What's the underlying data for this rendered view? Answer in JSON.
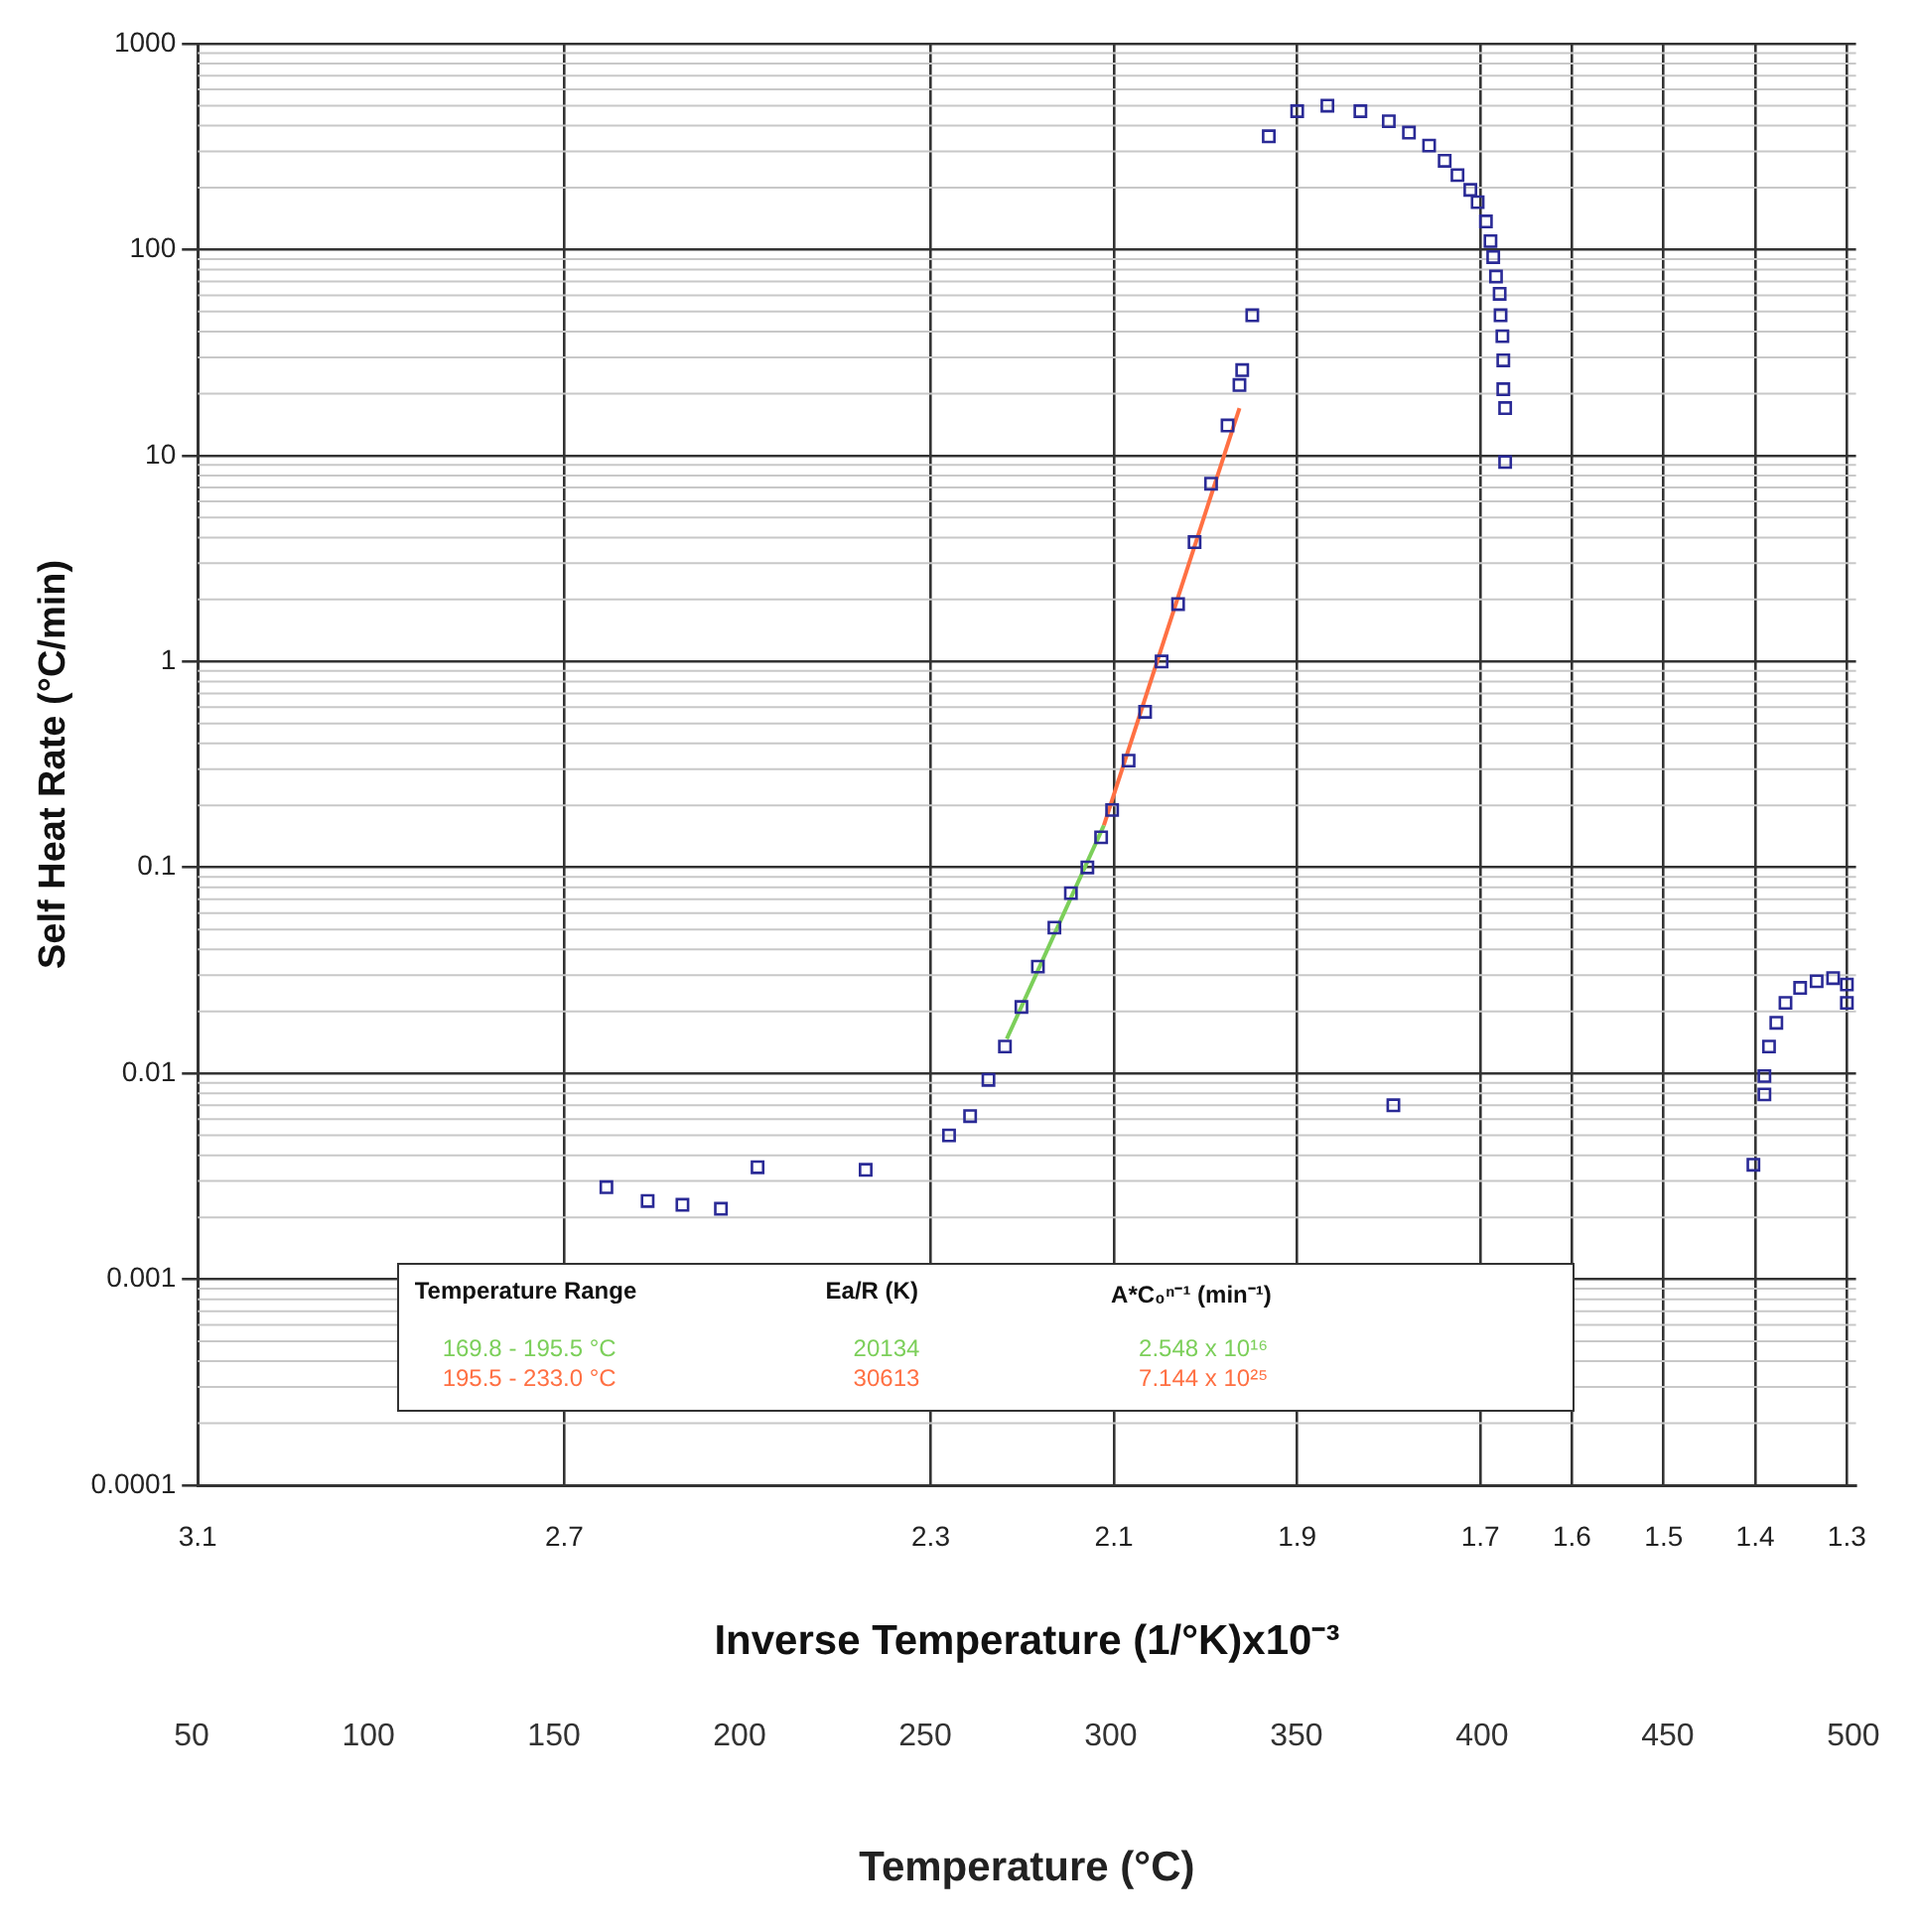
{
  "chart_data": {
    "type": "scatter",
    "xlabel": "Inverse Temperature (1/°K)x10⁻³",
    "ylabel": "Self Heat Rate (°C/min)",
    "x2label": "Temperature (°C)",
    "log": "y",
    "grid": true,
    "legend": false,
    "marker": "square",
    "xlim": [
      3.1,
      1.29
    ],
    "xticks": [
      3.1,
      2.7,
      2.3,
      2.1,
      1.9,
      1.7,
      1.6,
      1.5,
      1.4,
      1.3
    ],
    "ylim": [
      0.0001,
      1000
    ],
    "yticks": [
      0.0001,
      0.001,
      0.01,
      0.1,
      1,
      10,
      100,
      1000
    ],
    "annotations": [
      "Temperature Range",
      "Ea/R (K)",
      "A*C₀ⁿ⁻¹ (min⁻¹)",
      "169.8 - 195.5 °C",
      "20134",
      "2.548 x 10¹⁶",
      "195.5 - 233.0 °C",
      "30613",
      "7.144 x 10²⁵",
      "50",
      "100",
      "150",
      "200",
      "250",
      "300",
      "350",
      "400",
      "450",
      "500"
    ],
    "series": [
      {
        "type": "scatter",
        "color": "#2a2a96",
        "x": [
          2.654,
          2.609,
          2.571,
          2.529,
          2.489,
          2.371,
          2.28,
          2.257,
          2.237,
          2.219,
          2.201,
          2.183,
          2.165,
          2.147,
          2.129,
          2.114,
          2.102,
          2.084,
          2.066,
          2.048,
          2.03,
          2.012,
          1.994,
          1.976,
          1.963,
          1.96,
          1.949,
          1.931,
          1.9,
          1.867,
          1.831,
          1.8,
          1.778,
          1.756,
          1.739,
          1.725,
          1.711,
          1.703,
          1.694,
          1.689,
          1.686,
          1.683,
          1.679,
          1.678,
          1.676,
          1.675,
          1.675,
          1.673,
          1.673,
          1.795,
          1.402,
          1.39,
          1.39,
          1.385,
          1.377,
          1.367,
          1.351,
          1.333,
          1.315,
          1.3,
          1.3
        ],
        "values": [
          0.0028,
          0.0024,
          0.0023,
          0.0022,
          0.0035,
          0.0034,
          0.005,
          0.0062,
          0.0093,
          0.0135,
          0.021,
          0.033,
          0.051,
          0.075,
          0.1,
          0.14,
          0.19,
          0.33,
          0.57,
          1,
          1.9,
          3.8,
          7.3,
          14,
          22,
          26,
          48,
          355,
          470,
          500,
          470,
          420,
          370,
          320,
          270,
          230,
          195,
          170,
          137,
          110,
          92,
          74,
          61,
          48,
          38,
          29,
          21,
          17,
          9.3,
          0.007,
          0.0036,
          0.0079,
          0.0097,
          0.0135,
          0.0176,
          0.022,
          0.026,
          0.028,
          0.029,
          0.027,
          0.022
        ]
      },
      {
        "type": "line",
        "color": "#7ccf5a",
        "marker": "none",
        "x": [
          2.217,
          2.111
        ],
        "values": [
          0.0147,
          0.16
        ]
      },
      {
        "type": "line",
        "color": "#ff7043",
        "marker": "none",
        "x": [
          2.111,
          1.963
        ],
        "values": [
          0.16,
          17
        ]
      }
    ]
  }
}
